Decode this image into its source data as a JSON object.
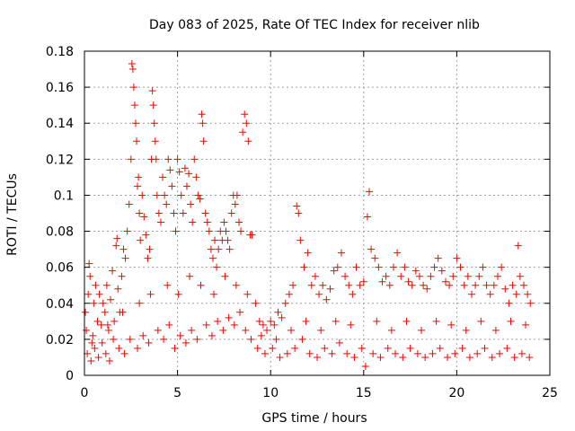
{
  "chart_data": {
    "type": "scatter",
    "title": "Day 083 of 2025, Rate Of TEC Index for receiver nlib",
    "xlabel": "GPS time / hours",
    "ylabel": "ROTI / TECUs",
    "xlim": [
      0,
      25
    ],
    "ylim": [
      0,
      0.18
    ],
    "xticks": [
      0,
      5,
      10,
      15,
      20,
      25
    ],
    "yticks": [
      0,
      0.02,
      0.04,
      0.06,
      0.08,
      0.1,
      0.12,
      0.14,
      0.16,
      0.18
    ],
    "xtick_labels": [
      "0",
      "5",
      "10",
      "15",
      "20",
      "25"
    ],
    "ytick_labels": [
      "0",
      "0.02",
      "0.04",
      "0.06",
      "0.08",
      "0.1",
      "0.12",
      "0.14",
      "0.16",
      "0.18"
    ],
    "grid": true,
    "marker": "+",
    "color": "#ff0000",
    "series": [
      {
        "points": [
          [
            0.05,
            0.035
          ],
          [
            0.1,
            0.025
          ],
          [
            0.2,
            0.045
          ],
          [
            0.25,
            0.062
          ],
          [
            0.3,
            0.055
          ],
          [
            0.4,
            0.018
          ],
          [
            0.5,
            0.04
          ],
          [
            0.6,
            0.05
          ],
          [
            0.7,
            0.03
          ],
          [
            0.8,
            0.045
          ],
          [
            0.9,
            0.028
          ],
          [
            1.0,
            0.04
          ],
          [
            1.1,
            0.035
          ],
          [
            1.2,
            0.05
          ],
          [
            1.3,
            0.025
          ],
          [
            1.4,
            0.042
          ],
          [
            1.5,
            0.058
          ],
          [
            1.6,
            0.03
          ],
          [
            1.7,
            0.072
          ],
          [
            1.75,
            0.076
          ],
          [
            1.8,
            0.048
          ],
          [
            1.9,
            0.035
          ],
          [
            2.0,
            0.055
          ],
          [
            2.1,
            0.07
          ],
          [
            2.2,
            0.065
          ],
          [
            2.3,
            0.08
          ],
          [
            2.4,
            0.095
          ],
          [
            2.5,
            0.12
          ],
          [
            2.55,
            0.173
          ],
          [
            2.6,
            0.17
          ],
          [
            2.65,
            0.16
          ],
          [
            2.7,
            0.15
          ],
          [
            2.75,
            0.14
          ],
          [
            2.8,
            0.13
          ],
          [
            2.85,
            0.105
          ],
          [
            2.9,
            0.11
          ],
          [
            2.95,
            0.09
          ],
          [
            3.0,
            0.075
          ],
          [
            3.1,
            0.1
          ],
          [
            3.2,
            0.088
          ],
          [
            3.3,
            0.078
          ],
          [
            3.4,
            0.065
          ],
          [
            3.5,
            0.07
          ],
          [
            3.6,
            0.12
          ],
          [
            3.65,
            0.158
          ],
          [
            3.7,
            0.15
          ],
          [
            3.75,
            0.14
          ],
          [
            3.8,
            0.13
          ],
          [
            3.85,
            0.12
          ],
          [
            3.9,
            0.1
          ],
          [
            4.0,
            0.09
          ],
          [
            4.1,
            0.085
          ],
          [
            4.2,
            0.11
          ],
          [
            4.3,
            0.1
          ],
          [
            4.4,
            0.095
          ],
          [
            4.5,
            0.12
          ],
          [
            4.6,
            0.114
          ],
          [
            4.7,
            0.105
          ],
          [
            4.8,
            0.09
          ],
          [
            4.9,
            0.08
          ],
          [
            5.0,
            0.12
          ],
          [
            5.1,
            0.113
          ],
          [
            5.2,
            0.1
          ],
          [
            5.3,
            0.09
          ],
          [
            5.4,
            0.115
          ],
          [
            5.5,
            0.105
          ],
          [
            5.6,
            0.112
          ],
          [
            5.7,
            0.095
          ],
          [
            5.8,
            0.085
          ],
          [
            5.9,
            0.12
          ],
          [
            6.0,
            0.11
          ],
          [
            6.1,
            0.1
          ],
          [
            6.2,
            0.098
          ],
          [
            6.3,
            0.145
          ],
          [
            6.35,
            0.14
          ],
          [
            6.4,
            0.13
          ],
          [
            6.5,
            0.09
          ],
          [
            6.6,
            0.085
          ],
          [
            6.7,
            0.08
          ],
          [
            6.8,
            0.07
          ],
          [
            6.9,
            0.065
          ],
          [
            7.0,
            0.075
          ],
          [
            7.1,
            0.06
          ],
          [
            7.2,
            0.07
          ],
          [
            7.3,
            0.08
          ],
          [
            7.4,
            0.075
          ],
          [
            7.5,
            0.085
          ],
          [
            7.6,
            0.08
          ],
          [
            7.7,
            0.075
          ],
          [
            7.8,
            0.07
          ],
          [
            7.9,
            0.09
          ],
          [
            8.0,
            0.1
          ],
          [
            8.1,
            0.095
          ],
          [
            8.2,
            0.1
          ],
          [
            8.3,
            0.085
          ],
          [
            8.4,
            0.08
          ],
          [
            8.5,
            0.135
          ],
          [
            8.6,
            0.145
          ],
          [
            8.7,
            0.14
          ],
          [
            8.8,
            0.13
          ],
          [
            8.9,
            0.078
          ],
          [
            9.0,
            0.078
          ],
          [
            9.2,
            0.04
          ],
          [
            9.4,
            0.03
          ],
          [
            9.6,
            0.028
          ],
          [
            9.8,
            0.025
          ],
          [
            10.0,
            0.03
          ],
          [
            10.2,
            0.028
          ],
          [
            10.4,
            0.035
          ],
          [
            10.6,
            0.032
          ],
          [
            10.8,
            0.04
          ],
          [
            11.0,
            0.045
          ],
          [
            11.2,
            0.05
          ],
          [
            11.4,
            0.094
          ],
          [
            11.5,
            0.09
          ],
          [
            11.6,
            0.075
          ],
          [
            11.8,
            0.06
          ],
          [
            12.0,
            0.068
          ],
          [
            12.2,
            0.05
          ],
          [
            12.4,
            0.055
          ],
          [
            12.6,
            0.045
          ],
          [
            12.8,
            0.05
          ],
          [
            13.0,
            0.042
          ],
          [
            13.2,
            0.048
          ],
          [
            13.4,
            0.058
          ],
          [
            13.6,
            0.06
          ],
          [
            13.8,
            0.068
          ],
          [
            14.0,
            0.055
          ],
          [
            14.2,
            0.05
          ],
          [
            14.4,
            0.045
          ],
          [
            14.6,
            0.06
          ],
          [
            14.8,
            0.05
          ],
          [
            15.0,
            0.052
          ],
          [
            15.2,
            0.088
          ],
          [
            15.3,
            0.102
          ],
          [
            15.4,
            0.07
          ],
          [
            15.6,
            0.065
          ],
          [
            15.8,
            0.06
          ],
          [
            16.0,
            0.052
          ],
          [
            16.2,
            0.055
          ],
          [
            16.4,
            0.05
          ],
          [
            16.6,
            0.06
          ],
          [
            16.8,
            0.068
          ],
          [
            17.0,
            0.055
          ],
          [
            17.2,
            0.06
          ],
          [
            17.4,
            0.052
          ],
          [
            17.6,
            0.05
          ],
          [
            17.8,
            0.058
          ],
          [
            18.0,
            0.055
          ],
          [
            18.2,
            0.05
          ],
          [
            18.4,
            0.048
          ],
          [
            18.6,
            0.055
          ],
          [
            18.8,
            0.06
          ],
          [
            19.0,
            0.065
          ],
          [
            19.2,
            0.058
          ],
          [
            19.4,
            0.052
          ],
          [
            19.6,
            0.05
          ],
          [
            19.8,
            0.055
          ],
          [
            20.0,
            0.065
          ],
          [
            20.2,
            0.06
          ],
          [
            20.4,
            0.05
          ],
          [
            20.6,
            0.055
          ],
          [
            20.8,
            0.045
          ],
          [
            21.0,
            0.05
          ],
          [
            21.2,
            0.055
          ],
          [
            21.4,
            0.06
          ],
          [
            21.6,
            0.05
          ],
          [
            21.8,
            0.045
          ],
          [
            22.0,
            0.05
          ],
          [
            22.2,
            0.055
          ],
          [
            22.4,
            0.06
          ],
          [
            22.6,
            0.048
          ],
          [
            22.8,
            0.04
          ],
          [
            23.0,
            0.05
          ],
          [
            23.2,
            0.045
          ],
          [
            23.3,
            0.072
          ],
          [
            23.4,
            0.055
          ],
          [
            23.6,
            0.05
          ],
          [
            23.8,
            0.045
          ],
          [
            23.95,
            0.04
          ],
          [
            0.15,
            0.012
          ],
          [
            0.35,
            0.008
          ],
          [
            0.55,
            0.015
          ],
          [
            0.75,
            0.01
          ],
          [
            0.95,
            0.018
          ],
          [
            1.15,
            0.012
          ],
          [
            1.35,
            0.008
          ],
          [
            1.55,
            0.02
          ],
          [
            1.85,
            0.015
          ],
          [
            2.15,
            0.012
          ],
          [
            2.45,
            0.02
          ],
          [
            2.85,
            0.015
          ],
          [
            3.15,
            0.022
          ],
          [
            3.45,
            0.018
          ],
          [
            3.95,
            0.025
          ],
          [
            4.25,
            0.02
          ],
          [
            4.55,
            0.028
          ],
          [
            4.85,
            0.015
          ],
          [
            5.15,
            0.022
          ],
          [
            5.45,
            0.018
          ],
          [
            5.75,
            0.025
          ],
          [
            6.05,
            0.02
          ],
          [
            6.55,
            0.028
          ],
          [
            6.85,
            0.022
          ],
          [
            7.15,
            0.03
          ],
          [
            7.45,
            0.025
          ],
          [
            7.75,
            0.032
          ],
          [
            8.05,
            0.028
          ],
          [
            8.35,
            0.035
          ],
          [
            8.65,
            0.025
          ],
          [
            8.95,
            0.02
          ],
          [
            9.3,
            0.015
          ],
          [
            9.7,
            0.012
          ],
          [
            10.1,
            0.015
          ],
          [
            10.5,
            0.01
          ],
          [
            10.9,
            0.012
          ],
          [
            11.3,
            0.015
          ],
          [
            11.7,
            0.02
          ],
          [
            12.1,
            0.012
          ],
          [
            12.5,
            0.01
          ],
          [
            12.9,
            0.015
          ],
          [
            13.3,
            0.012
          ],
          [
            13.7,
            0.018
          ],
          [
            14.1,
            0.012
          ],
          [
            14.5,
            0.01
          ],
          [
            14.9,
            0.015
          ],
          [
            15.1,
            0.005
          ],
          [
            15.5,
            0.012
          ],
          [
            15.9,
            0.01
          ],
          [
            16.3,
            0.015
          ],
          [
            16.7,
            0.012
          ],
          [
            17.1,
            0.01
          ],
          [
            17.5,
            0.015
          ],
          [
            17.9,
            0.012
          ],
          [
            18.3,
            0.01
          ],
          [
            18.7,
            0.012
          ],
          [
            19.1,
            0.015
          ],
          [
            19.5,
            0.01
          ],
          [
            19.9,
            0.012
          ],
          [
            20.3,
            0.015
          ],
          [
            20.7,
            0.01
          ],
          [
            21.1,
            0.012
          ],
          [
            21.5,
            0.015
          ],
          [
            21.9,
            0.01
          ],
          [
            22.3,
            0.012
          ],
          [
            22.7,
            0.015
          ],
          [
            23.1,
            0.01
          ],
          [
            23.5,
            0.012
          ],
          [
            23.9,
            0.01
          ],
          [
            0.45,
            0.022
          ],
          [
            1.25,
            0.028
          ],
          [
            2.05,
            0.035
          ],
          [
            2.95,
            0.04
          ],
          [
            3.55,
            0.045
          ],
          [
            4.45,
            0.05
          ],
          [
            5.05,
            0.045
          ],
          [
            5.65,
            0.055
          ],
          [
            6.25,
            0.05
          ],
          [
            6.95,
            0.045
          ],
          [
            7.55,
            0.055
          ],
          [
            8.15,
            0.05
          ],
          [
            8.75,
            0.045
          ],
          [
            9.5,
            0.022
          ],
          [
            10.3,
            0.02
          ],
          [
            11.1,
            0.025
          ],
          [
            11.9,
            0.03
          ],
          [
            12.7,
            0.025
          ],
          [
            13.5,
            0.03
          ],
          [
            14.3,
            0.028
          ],
          [
            15.7,
            0.03
          ],
          [
            16.5,
            0.025
          ],
          [
            17.3,
            0.03
          ],
          [
            18.1,
            0.025
          ],
          [
            18.9,
            0.03
          ],
          [
            19.7,
            0.028
          ],
          [
            20.5,
            0.025
          ],
          [
            21.3,
            0.03
          ],
          [
            22.1,
            0.025
          ],
          [
            22.9,
            0.03
          ],
          [
            23.7,
            0.028
          ]
        ]
      }
    ]
  }
}
